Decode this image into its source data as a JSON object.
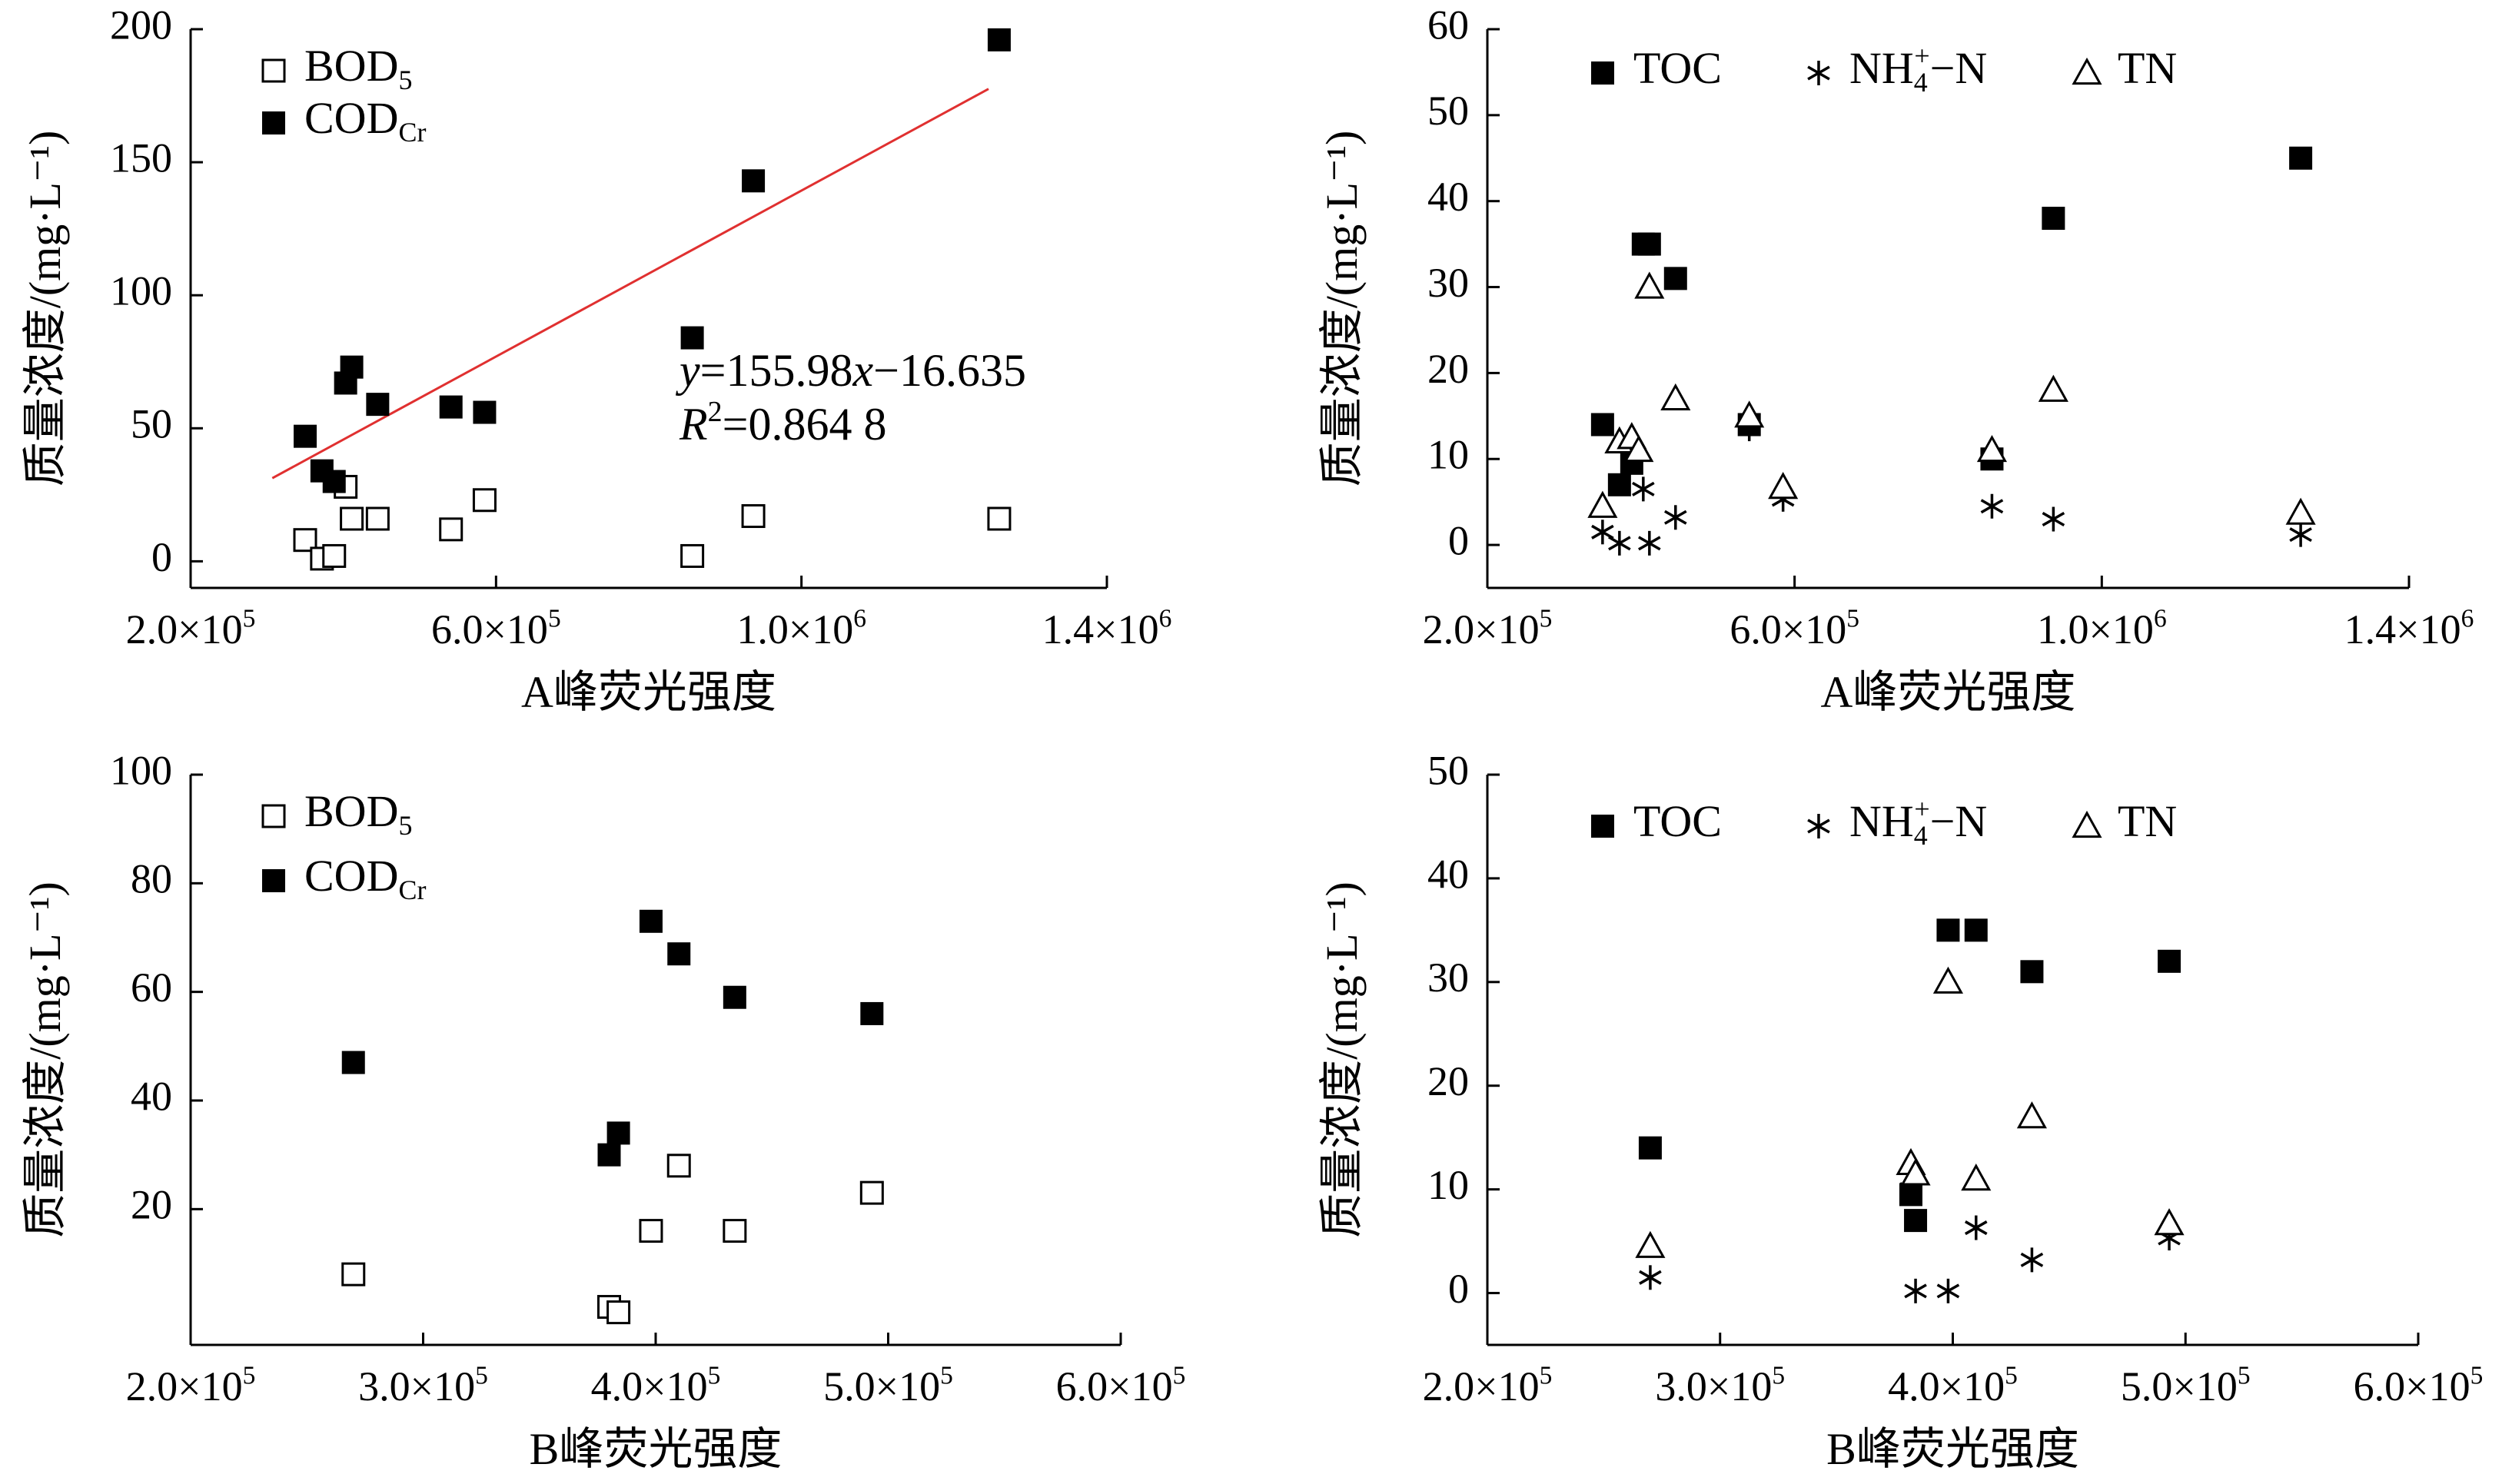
{
  "figure": {
    "panels": [
      {
        "ylabel": "质量浓度/(mg·L⁻¹)",
        "xlabel": "A峰荧光强度"
      },
      {
        "ylabel": "质量浓度/(mg·L⁻¹)",
        "xlabel": "A峰荧光强度"
      },
      {
        "ylabel": "质量浓度/(mg·L⁻¹)",
        "xlabel": "B峰荧光强度"
      },
      {
        "ylabel": "质量浓度/(mg·L⁻¹)",
        "xlabel": "B峰荧光强度"
      }
    ]
  },
  "chart_data": [
    {
      "type": "scatter",
      "xlabel": "A峰荧光强度",
      "ylabel": "质量浓度/(mg·L⁻¹)",
      "xlim": [
        200000,
        1400000
      ],
      "ylim": [
        -10,
        200
      ],
      "xticks": [
        200000,
        600000,
        1000000,
        1400000
      ],
      "xtick_labels": [
        [
          "2.0×10",
          "5"
        ],
        [
          "6.0×10",
          "5"
        ],
        [
          "1.0×10",
          "6"
        ],
        [
          "1.4×10",
          "6"
        ]
      ],
      "yticks": [
        0,
        50,
        100,
        150,
        200
      ],
      "ytick_labels": [
        "0",
        "50",
        "100",
        "150",
        "200"
      ],
      "legend": "top-left",
      "grid": false,
      "series": [
        {
          "name": "BOD5",
          "label_main": "BOD",
          "label_sub": "5",
          "marker": "square-open",
          "x": [
            350000,
            372000,
            388000,
            403000,
            411000,
            445000,
            541000,
            585000,
            857000,
            937000,
            1259000
          ],
          "y": [
            8,
            1,
            2,
            28,
            16,
            16,
            12,
            23,
            2,
            17,
            16
          ]
        },
        {
          "name": "CODCr",
          "label_main": "COD",
          "label_sub": "Cr",
          "marker": "square-filled",
          "x": [
            350000,
            372000,
            388000,
            403000,
            411000,
            445000,
            541000,
            585000,
            857000,
            937000,
            1259000
          ],
          "y": [
            47,
            34,
            30,
            67,
            73,
            59,
            58,
            56,
            84,
            143,
            196
          ]
        }
      ],
      "fit": {
        "slope": 155.98,
        "intercept": -16.635,
        "x_range": [
          307000,
          1245000
        ],
        "color": "#e03030"
      },
      "annotations": [
        {
          "kind": "equation",
          "text_y": "y",
          "text_eq": "=155.98",
          "text_x": "x",
          "text_rest": "−16.635"
        },
        {
          "kind": "r2",
          "text_R": "R",
          "text_sup": "2",
          "text_rest": "=0.864 8"
        }
      ]
    },
    {
      "type": "scatter",
      "xlabel": "A峰荧光强度",
      "ylabel": "质量浓度/(mg·L⁻¹)",
      "xlim": [
        200000,
        1400000
      ],
      "ylim": [
        -5,
        60
      ],
      "xticks": [
        200000,
        600000,
        1000000,
        1400000
      ],
      "xtick_labels": [
        [
          "2.0×10",
          "5"
        ],
        [
          "6.0×10",
          "5"
        ],
        [
          "1.0×10",
          "6"
        ],
        [
          "1.4×10",
          "6"
        ]
      ],
      "yticks": [
        0,
        10,
        20,
        30,
        40,
        50,
        60
      ],
      "ytick_labels": [
        "0",
        "10",
        "20",
        "30",
        "40",
        "50",
        "60"
      ],
      "legend": "top",
      "grid": false,
      "series": [
        {
          "name": "TOC",
          "label_main": "TOC",
          "label_sub": "",
          "marker": "square-filled",
          "x": [
            350000,
            372000,
            388000,
            403000,
            411000,
            445000,
            541000,
            857000,
            937000,
            1259000
          ],
          "y": [
            14,
            7,
            9.5,
            35,
            35,
            31,
            14,
            10,
            38,
            45
          ]
        },
        {
          "name": "NH4+-N",
          "label_main": "NH",
          "label_sub": "4",
          "label_sup": "+",
          "label_rest": "−N",
          "marker": "asterisk",
          "x": [
            350000,
            372000,
            388000,
            403000,
            411000,
            445000,
            541000,
            585000,
            857000,
            937000,
            1259000
          ],
          "y": [
            1.5,
            0.2,
            10,
            6.5,
            0.2,
            3.2,
            13.5,
            5.3,
            4.5,
            3,
            1.2
          ]
        },
        {
          "name": "TN",
          "label_main": "TN",
          "label_sub": "",
          "marker": "triangle-open",
          "x": [
            350000,
            372000,
            388000,
            397000,
            411000,
            445000,
            541000,
            585000,
            857000,
            937000,
            1259000
          ],
          "y": [
            4.5,
            12,
            12.5,
            11,
            30,
            17,
            15,
            6.7,
            11,
            18,
            3.7
          ]
        }
      ]
    },
    {
      "type": "scatter",
      "xlabel": "B峰荧光强度",
      "ylabel": "质量浓度/(mg·L⁻¹)",
      "xlim": [
        200000,
        600000
      ],
      "ylim": [
        -5,
        100
      ],
      "xticks": [
        200000,
        300000,
        400000,
        500000,
        600000
      ],
      "xtick_labels": [
        [
          "2.0×10",
          "5"
        ],
        [
          "3.0×10",
          "5"
        ],
        [
          "4.0×10",
          "5"
        ],
        [
          "5.0×10",
          "5"
        ],
        [
          "6.0×10",
          "5"
        ]
      ],
      "yticks": [
        20,
        40,
        60,
        80,
        100
      ],
      "ytick_labels": [
        "20",
        "40",
        "60",
        "80",
        "100"
      ],
      "legend": "top-left",
      "grid": false,
      "series": [
        {
          "name": "BOD5",
          "label_main": "BOD",
          "label_sub": "5",
          "marker": "square-open",
          "x": [
            270000,
            380000,
            384000,
            398000,
            410000,
            434000,
            493000
          ],
          "y": [
            8,
            2,
            1,
            16,
            28,
            16,
            23
          ]
        },
        {
          "name": "CODCr",
          "label_main": "COD",
          "label_sub": "Cr",
          "marker": "square-filled",
          "x": [
            270000,
            380000,
            384000,
            398000,
            410000,
            434000,
            493000
          ],
          "y": [
            47,
            30,
            34,
            73,
            67,
            59,
            56
          ]
        }
      ]
    },
    {
      "type": "scatter",
      "xlabel": "B峰荧光强度",
      "ylabel": "质量浓度/(mg·L⁻¹)",
      "xlim": [
        200000,
        600000
      ],
      "ylim": [
        -5,
        50
      ],
      "xticks": [
        200000,
        300000,
        400000,
        500000,
        600000
      ],
      "xtick_labels": [
        [
          "2.0×10",
          "5"
        ],
        [
          "3.0×10",
          "5"
        ],
        [
          "4.0×10",
          "5"
        ],
        [
          "5.0×10",
          "5"
        ],
        [
          "6.0×10",
          "5"
        ]
      ],
      "yticks": [
        0,
        10,
        20,
        30,
        40,
        50
      ],
      "ytick_labels": [
        "0",
        "10",
        "20",
        "30",
        "40",
        "50"
      ],
      "legend": "top",
      "grid": false,
      "series": [
        {
          "name": "TOC",
          "label_main": "TOC",
          "label_sub": "",
          "marker": "square-filled",
          "x": [
            270000,
            382000,
            384000,
            398000,
            410000,
            434000,
            493000
          ],
          "y": [
            14,
            9.5,
            7,
            35,
            35,
            31,
            32
          ]
        },
        {
          "name": "NH4+-N",
          "label_main": "NH",
          "label_sub": "4",
          "label_sup": "+",
          "label_rest": "−N",
          "marker": "asterisk",
          "x": [
            270000,
            382000,
            384000,
            398000,
            410000,
            434000,
            493000
          ],
          "y": [
            1.5,
            10,
            0.2,
            0.2,
            6.3,
            3.2,
            5.3
          ]
        },
        {
          "name": "TN",
          "label_main": "TN",
          "label_sub": "",
          "marker": "triangle-open",
          "x": [
            270000,
            382000,
            384000,
            398000,
            410000,
            434000,
            493000
          ],
          "y": [
            4.5,
            12.5,
            11.5,
            30,
            11,
            17,
            6.7
          ]
        }
      ]
    }
  ]
}
